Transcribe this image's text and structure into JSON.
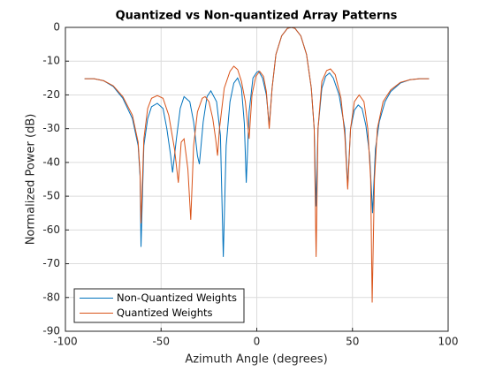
{
  "chart_data": {
    "type": "line",
    "title": "Quantized vs Non-quantized Array Patterns",
    "xlabel": "Azimuth Angle (degrees)",
    "ylabel": "Normalized Power (dB)",
    "xlim": [
      -100,
      100
    ],
    "xticks": [
      -100,
      -50,
      0,
      50,
      100
    ],
    "ylim": [
      -90,
      0
    ],
    "yticks": [
      0,
      -10,
      -20,
      -30,
      -40,
      -50,
      -60,
      -70,
      -80,
      -90
    ],
    "grid": true,
    "legend": "lower left",
    "series": [
      {
        "name": "Non-Quantized Weights",
        "color": "#0072bd",
        "x": [
          -90,
          -85,
          -80,
          -75,
          -70,
          -65,
          -62,
          -61,
          -60.5,
          -59,
          -57,
          -55,
          -52,
          -49,
          -47,
          -45,
          -44,
          -42,
          -40,
          -38,
          -35,
          -33,
          -31,
          -30,
          -28,
          -26,
          -24,
          -21,
          -19,
          -17.5,
          -16,
          -14,
          -12,
          -10,
          -8,
          -6.5,
          -5.5,
          -4,
          -2,
          0,
          1,
          3,
          5,
          6.5,
          8,
          10,
          13,
          16,
          18,
          20,
          23,
          26,
          28.5,
          30,
          31,
          32,
          34,
          36,
          38,
          40,
          43,
          46,
          47.5,
          49,
          51,
          53,
          55,
          57,
          59,
          60.5,
          62,
          64,
          67,
          70,
          75,
          80,
          85,
          90
        ],
        "values": [
          -15.2,
          -15.2,
          -15.8,
          -17.5,
          -21,
          -27,
          -35,
          -44,
          -65,
          -35,
          -27,
          -23.5,
          -22.5,
          -24,
          -30,
          -38,
          -43,
          -33,
          -24,
          -20.5,
          -22,
          -28,
          -38,
          -40.5,
          -28,
          -20.5,
          -18.8,
          -22,
          -32,
          -68,
          -35,
          -22,
          -16.5,
          -15,
          -18,
          -28.5,
          -46,
          -25,
          -15,
          -13.3,
          -13,
          -15,
          -20,
          -29,
          -18,
          -8,
          -2.5,
          -0.3,
          0,
          -0.3,
          -2.5,
          -8,
          -18,
          -30,
          -53,
          -30,
          -18,
          -14.5,
          -13.5,
          -15,
          -20,
          -30,
          -47,
          -30,
          -24.5,
          -23,
          -24,
          -29,
          -38,
          -55,
          -36,
          -28,
          -22,
          -19,
          -16.5,
          -15.5,
          -15.2,
          -15.2
        ]
      },
      {
        "name": "Quantized Weights",
        "color": "#d95319",
        "x": [
          -90,
          -85,
          -80,
          -75,
          -70,
          -65,
          -62,
          -61,
          -60.5,
          -59,
          -57,
          -55,
          -52,
          -49,
          -46,
          -43,
          -41,
          -39.5,
          -38,
          -36,
          -34.5,
          -33,
          -31,
          -28.5,
          -27,
          -25,
          -23,
          -21.5,
          -20.5,
          -19.5,
          -17,
          -14,
          -12,
          -10,
          -8,
          -6,
          -4,
          -2.5,
          -0.5,
          1.5,
          3.5,
          5,
          6.5,
          8,
          10,
          13,
          16,
          18,
          20,
          23,
          26,
          28.5,
          30,
          31,
          32,
          34,
          36.5,
          38.5,
          41,
          44,
          46,
          47.5,
          49,
          51,
          53.5,
          56,
          58,
          59.5,
          60.3,
          61.5,
          63,
          66,
          70,
          75,
          80,
          85,
          90
        ],
        "values": [
          -15.2,
          -15.2,
          -15.8,
          -17.3,
          -20.5,
          -26,
          -34,
          -43,
          -58,
          -33,
          -24,
          -21,
          -20.2,
          -21,
          -26,
          -36,
          -46,
          -34,
          -33,
          -42,
          -57,
          -35,
          -25,
          -21,
          -20.5,
          -22,
          -27,
          -33,
          -38,
          -30,
          -18,
          -13,
          -11.5,
          -12.5,
          -16,
          -22,
          -33,
          -20,
          -14.5,
          -13,
          -14.5,
          -19,
          -30,
          -18,
          -8,
          -2.5,
          -0.3,
          0,
          -0.3,
          -2.5,
          -8,
          -18,
          -30,
          -68,
          -30,
          -16,
          -12.8,
          -12.3,
          -14,
          -21,
          -32,
          -48,
          -30,
          -22,
          -20,
          -22,
          -30,
          -45,
          -81.5,
          -45,
          -30,
          -22,
          -18.5,
          -16.3,
          -15.5,
          -15.2,
          -15.2
        ]
      }
    ]
  }
}
